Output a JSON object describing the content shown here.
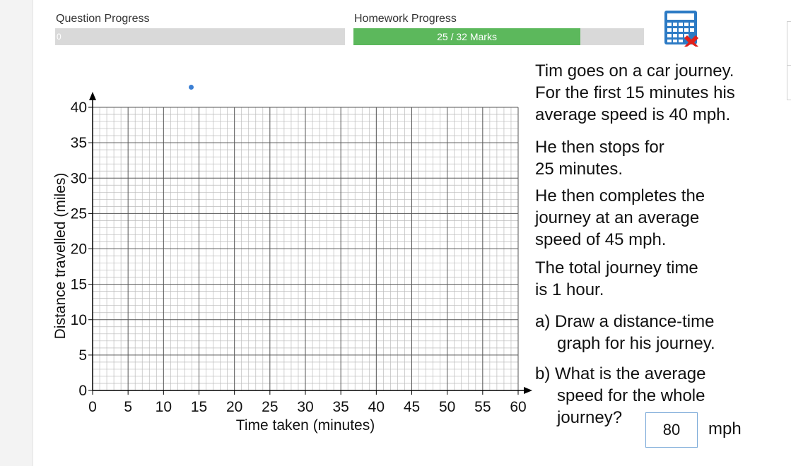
{
  "header": {
    "question_progress": {
      "label": "Question Progress",
      "value_text": "0",
      "fraction": 0
    },
    "homework_progress": {
      "label": "Homework Progress",
      "text": "25 / 32 Marks",
      "marks": 25,
      "total": 32
    },
    "calculator": {
      "icon": "calculator-disabled-icon",
      "colors": {
        "body": "#2c7ac4",
        "cross": "#e0201b"
      }
    }
  },
  "graph": {
    "ylabel": "Distance travelled (miles)",
    "xlabel": "Time taken (minutes)",
    "x_ticks": [
      "0",
      "5",
      "10",
      "15",
      "20",
      "25",
      "30",
      "35",
      "40",
      "45",
      "50",
      "55",
      "60"
    ],
    "y_ticks": [
      "0",
      "5",
      "10",
      "15",
      "20",
      "25",
      "30",
      "35",
      "40"
    ],
    "x_range": [
      0,
      60
    ],
    "y_range": [
      0,
      40
    ],
    "minor_per_major": 5,
    "grid": true,
    "colors": {
      "major": "#555555",
      "minor": "#bbbbbb",
      "axis": "#000000"
    },
    "dot_color": "#3b7fd4"
  },
  "question": {
    "intro": [
      "Tim goes on a car journey.",
      "For the first 15 minutes his",
      "average speed is 40 mph."
    ],
    "stop": [
      "He then stops for",
      "25 minutes."
    ],
    "complete": [
      "He then completes the",
      "journey at an average",
      "speed of 45 mph."
    ],
    "total": [
      "The total journey time",
      "is 1 hour."
    ],
    "part_a": [
      "a) Draw a distance-time",
      "graph for his journey."
    ],
    "part_b": [
      "b) What is the average",
      "speed for the whole",
      "journey?"
    ],
    "answer_value": "80",
    "answer_unit": "mph"
  }
}
